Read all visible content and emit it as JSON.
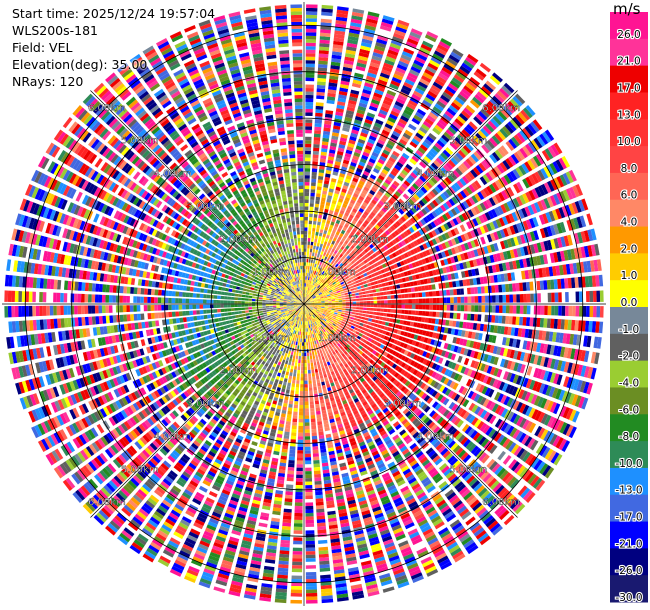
{
  "header": {
    "start_time": "Start time: 2025/12/24 19:57:04",
    "instrument": "WLS200s-181",
    "field": "Field: VEL",
    "elevation": "Elevation(deg): 35.00",
    "nrays": "NRays: 120"
  },
  "colorbar": {
    "unit": "m/s",
    "ticks": [
      "26.0",
      "21.0",
      "17.0",
      "13.0",
      "10.0",
      "8.0",
      "6.0",
      "4.0",
      "2.0",
      "1.0",
      "0.0",
      "-1.0",
      "-2.0",
      "-4.0",
      "-6.0",
      "-8.0",
      "-10.0",
      "-13.0",
      "-17.0",
      "-21.0",
      "-26.0",
      "-30.0"
    ],
    "colors": [
      "#ff1493",
      "#ff3399",
      "#ee0000",
      "#ff2222",
      "#ff3333",
      "#ff4444",
      "#ff6655",
      "#ff8866",
      "#ff9900",
      "#ffcc00",
      "#ffff00",
      "#778899",
      "#606060",
      "#9acd32",
      "#6b8e23",
      "#228b22",
      "#2e8b57",
      "#1e90ff",
      "#4169e1",
      "#0000ff",
      "#000080",
      "#191970"
    ]
  },
  "chart_data": {
    "type": "heatmap",
    "projection": "polar-ppi",
    "n_rays": 120,
    "range_ring_labels_km": [
      "1.00km",
      "2.00km",
      "3.00km",
      "4.00km",
      "5.00km",
      "6.00km"
    ],
    "ring_label_text": {
      "nw": [
        "6.00km",
        "5.00km",
        "4.00km",
        "3.00km",
        "2.00km",
        "1.00km"
      ],
      "ne": [
        "6.00km",
        "5.00km",
        "4.00km",
        "3.00km",
        "2.00km",
        "1.00km"
      ],
      "sw": [
        "1.00km",
        "2.00km",
        "3.00km",
        "4.00km",
        "5.00km",
        "6.00km"
      ],
      "se": [
        "1.00km",
        "2.00km",
        "3.00km",
        "4.00km",
        "5.00km",
        "6.00km"
      ]
    },
    "vmin": -30.0,
    "vmax": 26.0,
    "pattern": {
      "inner_region_km": 3.0,
      "approaching_sector_deg": [
        180,
        300
      ],
      "receding_sector_deg": [
        20,
        160
      ],
      "approaching_velocity": -13.0,
      "receding_velocity": 13.0,
      "outer_region": "noise"
    }
  }
}
